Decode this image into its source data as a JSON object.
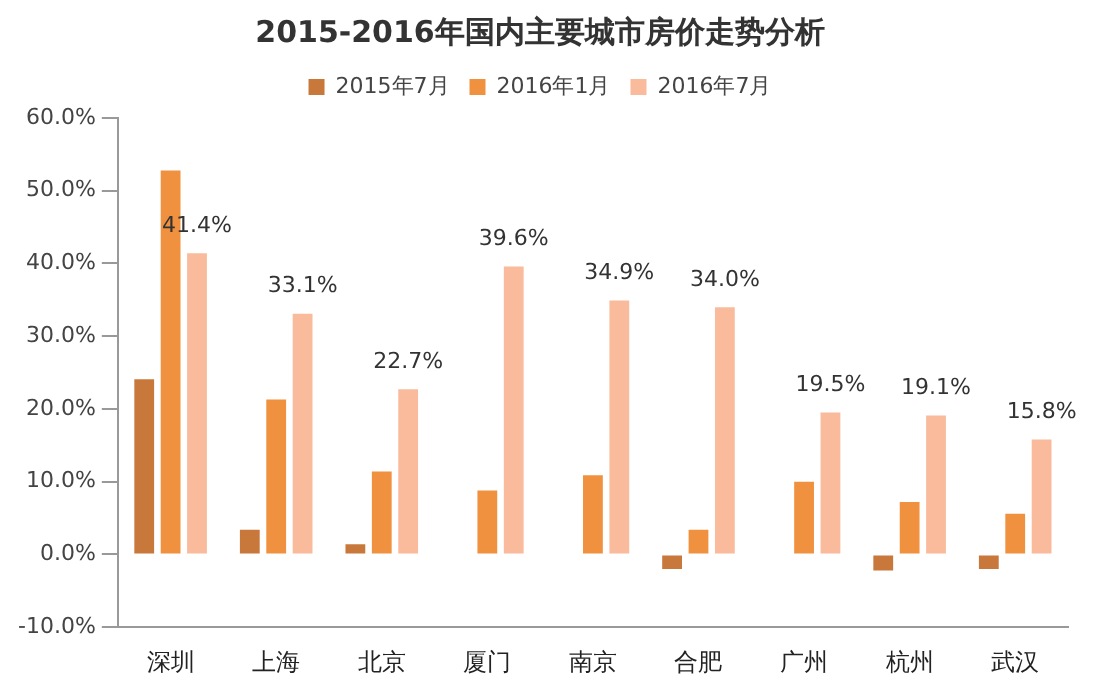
{
  "chart_data": {
    "type": "bar",
    "title": "2015-2016年国内主要城市房价走势分析",
    "categories": [
      "深圳",
      "上海",
      "北京",
      "厦门",
      "南京",
      "合肥",
      "广州",
      "杭州",
      "武汉"
    ],
    "series": [
      {
        "name": "2015年7月",
        "color": "#c8783a",
        "values": [
          24.1,
          3.4,
          1.4,
          0,
          0,
          -2.0,
          0,
          -2.2,
          -2.0
        ]
      },
      {
        "name": "2016年1月",
        "color": "#f0913f",
        "values": [
          52.8,
          21.3,
          11.4,
          8.8,
          10.9,
          3.4,
          10.0,
          7.2,
          5.6
        ]
      },
      {
        "name": "2016年7月",
        "color": "#f9bb9b",
        "values": [
          41.4,
          33.1,
          22.7,
          39.6,
          34.9,
          34.0,
          19.5,
          19.1,
          15.8
        ],
        "value_labels": [
          "41.4%",
          "33.1%",
          "22.7%",
          "39.6%",
          "34.9%",
          "34.0%",
          "19.5%",
          "19.1%",
          "15.8%"
        ]
      }
    ],
    "ylim": [
      -10,
      60
    ],
    "yticks": [
      {
        "value": -10,
        "label": "-10.0%"
      },
      {
        "value": 0,
        "label": "0.0%"
      },
      {
        "value": 10,
        "label": "10.0%"
      },
      {
        "value": 20,
        "label": "20.0%"
      },
      {
        "value": 30,
        "label": "30.0%"
      },
      {
        "value": 40,
        "label": "40.0%"
      },
      {
        "value": 50,
        "label": "50.0%"
      },
      {
        "value": 60,
        "label": "60.0%"
      }
    ],
    "grid": false,
    "legend": "top"
  }
}
